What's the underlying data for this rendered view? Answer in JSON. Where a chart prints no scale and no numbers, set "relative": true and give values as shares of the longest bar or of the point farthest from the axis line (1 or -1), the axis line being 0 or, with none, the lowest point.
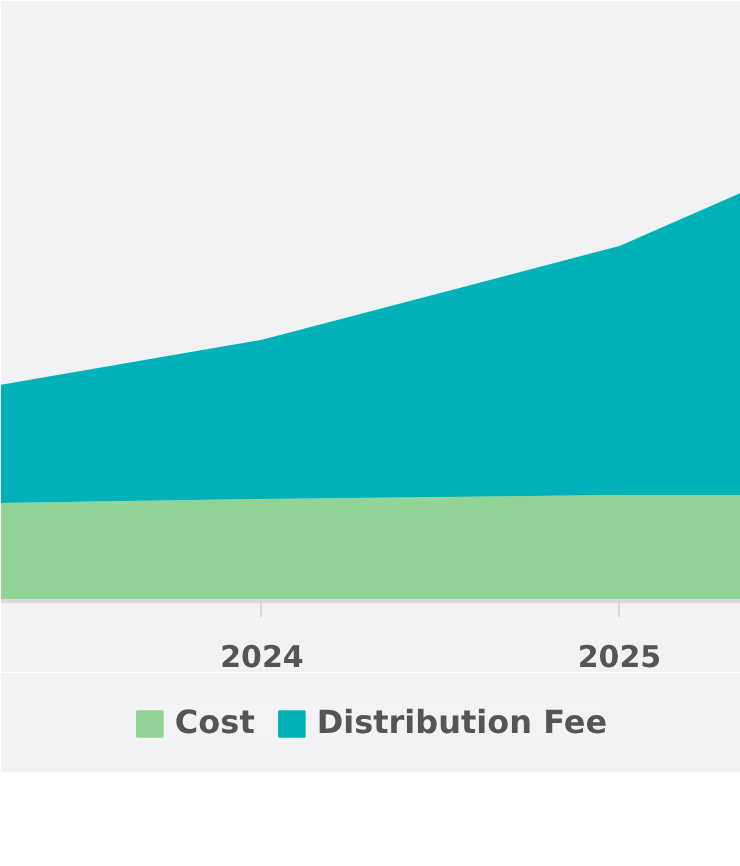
{
  "chart_data": {
    "type": "area",
    "stacked": true,
    "relative": true,
    "x": [
      2023.27,
      2024,
      2025,
      2025.34
    ],
    "xlim": [
      2023.27,
      2025.34
    ],
    "xticks": [
      2024,
      2025
    ],
    "legend": "bottom",
    "tick_labels": "x",
    "series": [
      {
        "name": "Cost",
        "color": "#92d396",
        "values": [
          0.24,
          0.25,
          0.26,
          0.26
        ]
      },
      {
        "name": "Distribution Fee",
        "color": "#00b2b7",
        "values": [
          0.29,
          0.39,
          0.61,
          0.74
        ]
      }
    ]
  }
}
